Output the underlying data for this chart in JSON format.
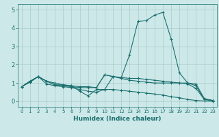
{
  "xlabel": "Humidex (Indice chaleur)",
  "bg_color": "#cce8e8",
  "grid_color": "#aacccc",
  "line_color": "#1a6e6e",
  "xlim": [
    -0.5,
    23.5
  ],
  "ylim": [
    -0.3,
    5.3
  ],
  "xticks": [
    0,
    1,
    2,
    3,
    4,
    5,
    6,
    7,
    8,
    9,
    10,
    11,
    12,
    13,
    14,
    15,
    16,
    17,
    18,
    19,
    20,
    21,
    22,
    23
  ],
  "yticks": [
    0,
    1,
    2,
    3,
    4,
    5
  ],
  "series": [
    [
      0.8,
      1.1,
      1.35,
      1.1,
      0.9,
      0.9,
      0.85,
      0.55,
      0.3,
      0.65,
      0.65,
      1.35,
      1.3,
      2.55,
      4.35,
      4.4,
      4.7,
      4.85,
      3.4,
      1.55,
      1.0,
      0.85,
      0.1,
      0.05
    ],
    [
      0.8,
      1.1,
      1.35,
      1.1,
      0.9,
      0.85,
      0.8,
      0.75,
      0.75,
      0.75,
      1.45,
      1.35,
      1.25,
      1.15,
      1.1,
      1.05,
      1.0,
      1.0,
      1.0,
      1.0,
      1.0,
      0.95,
      0.15,
      0.05
    ],
    [
      0.8,
      1.05,
      1.35,
      0.95,
      0.85,
      0.8,
      0.75,
      0.65,
      0.55,
      0.5,
      0.65,
      0.65,
      0.6,
      0.55,
      0.5,
      0.45,
      0.4,
      0.35,
      0.25,
      0.2,
      0.1,
      0.05,
      0.02,
      0.01
    ],
    [
      0.8,
      1.05,
      1.35,
      1.1,
      1.0,
      0.9,
      0.85,
      0.8,
      0.8,
      0.75,
      1.45,
      1.35,
      1.3,
      1.25,
      1.25,
      1.2,
      1.15,
      1.1,
      1.05,
      1.0,
      0.95,
      0.7,
      0.1,
      0.05
    ]
  ]
}
